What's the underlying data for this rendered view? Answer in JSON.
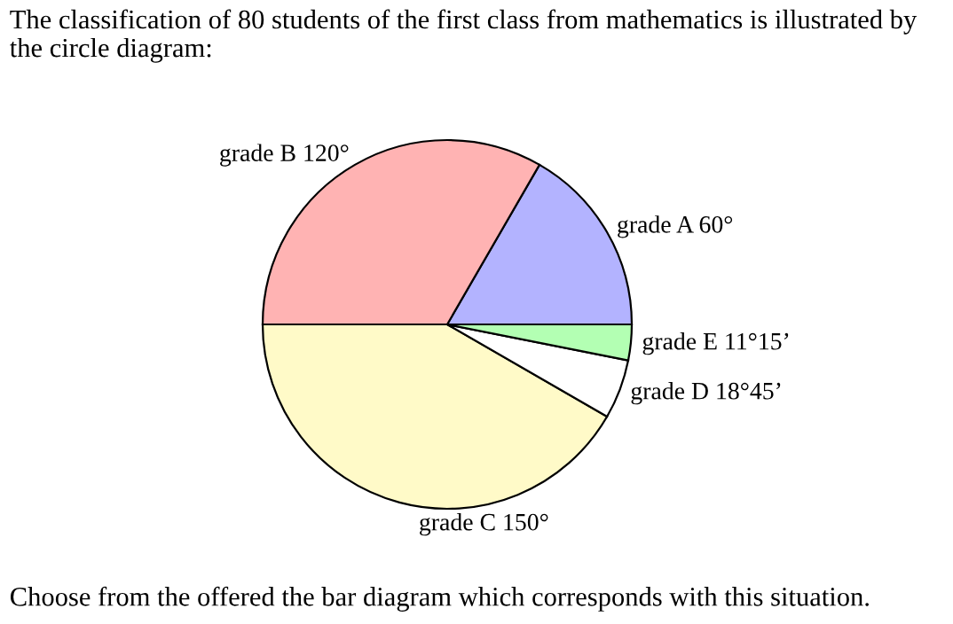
{
  "chart_data": {
    "type": "pie",
    "title": "The classification of 80 students of the first class from mathematics is illustrated by the circle diagram:",
    "categories": [
      "grade A 60°",
      "grade B 120°",
      "grade C 150°",
      "grade D 18°45’",
      "grade E 11°15’"
    ],
    "values": [
      60,
      120,
      150,
      18.75,
      11.25
    ],
    "colors": [
      "#b3b3ff",
      "#ffb3b3",
      "#fffac8",
      "#ffffff",
      "#b3ffb3"
    ],
    "legend": false,
    "annotations": [
      "Choose from the offered the bar diagram which corresponds with this situation."
    ]
  }
}
